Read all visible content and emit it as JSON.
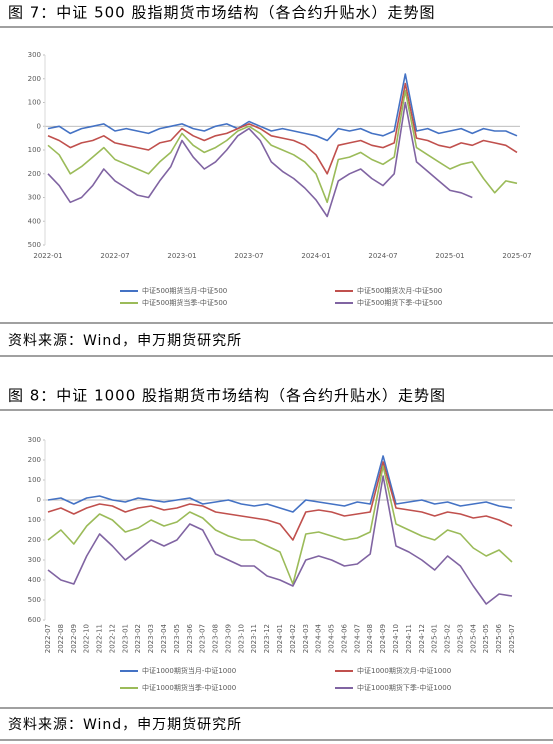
{
  "captions": [
    "图 7：中证 500 股指期货市场结构（各合约升贴水）走势图",
    "图 8：中证 1000 股指期货市场结构（各合约升贴水）走势图"
  ],
  "sources": [
    "资料来源：Wind，申万期货研究所",
    "资料来源：Wind，申万期货研究所"
  ],
  "chart_data": [
    {
      "type": "line",
      "x": [
        "2022-01",
        "2022-02",
        "2022-03",
        "2022-04",
        "2022-05",
        "2022-06",
        "2022-07",
        "2022-08",
        "2022-09",
        "2022-10",
        "2022-11",
        "2022-12",
        "2023-01",
        "2023-02",
        "2023-03",
        "2023-04",
        "2023-05",
        "2023-06",
        "2023-07",
        "2023-08",
        "2023-09",
        "2023-10",
        "2023-11",
        "2023-12",
        "2024-01",
        "2024-02",
        "2024-03",
        "2024-04",
        "2024-05",
        "2024-06",
        "2024-07",
        "2024-08",
        "2024-09",
        "2024-10",
        "2024-11",
        "2024-12",
        "2025-01",
        "2025-02",
        "2025-03",
        "2025-04",
        "2025-05",
        "2025-06",
        "2025-07"
      ],
      "xticks": [
        "2022-01",
        "2022-07",
        "2023-01",
        "2023-07",
        "2024-01",
        "2024-07",
        "2025-01",
        "2025-07"
      ],
      "ylim": [
        -500,
        300
      ],
      "yticks": [
        300,
        200,
        100,
        0,
        {
          "value": -100,
          "label": "100"
        },
        {
          "value": -200,
          "label": "200"
        },
        {
          "value": -300,
          "label": "300"
        },
        {
          "value": -400,
          "label": "400"
        },
        {
          "value": -500,
          "label": "500"
        }
      ],
      "series": [
        {
          "name": "中证500期货当月-中证500",
          "color": "#4472c4",
          "values": [
            -10,
            0,
            -30,
            -10,
            0,
            10,
            -20,
            -10,
            -20,
            -30,
            -10,
            0,
            10,
            -10,
            -20,
            0,
            10,
            -10,
            20,
            0,
            -20,
            -10,
            -20,
            -30,
            -40,
            -60,
            -10,
            -20,
            -10,
            -30,
            -40,
            -20,
            220,
            -20,
            -10,
            -30,
            -20,
            -10,
            -30,
            -10,
            -20,
            -20,
            -40
          ]
        },
        {
          "name": "中证500期货次月-中证500",
          "color": "#c0504d",
          "values": [
            -40,
            -60,
            -90,
            -70,
            -60,
            -40,
            -70,
            -80,
            -90,
            -100,
            -70,
            -60,
            -10,
            -40,
            -60,
            -40,
            -30,
            -10,
            10,
            -10,
            -40,
            -50,
            -60,
            -80,
            -120,
            -200,
            -80,
            -70,
            -60,
            -80,
            -90,
            -70,
            180,
            -50,
            -60,
            -80,
            -90,
            -70,
            -80,
            -60,
            -70,
            -80,
            -110
          ]
        },
        {
          "name": "中证500期货当季-中证500",
          "color": "#9bbb59",
          "values": [
            -80,
            -120,
            -200,
            -170,
            -130,
            -90,
            -140,
            -160,
            -180,
            -200,
            -150,
            -110,
            -30,
            -80,
            -110,
            -90,
            -60,
            -20,
            0,
            -30,
            -80,
            -100,
            -120,
            -150,
            -200,
            -320,
            -140,
            -130,
            -110,
            -140,
            -160,
            -130,
            150,
            -90,
            -120,
            -150,
            -180,
            -160,
            -150,
            -220,
            -280,
            -230,
            -240
          ]
        },
        {
          "name": "中证500期货下季-中证500",
          "color": "#8064a2",
          "values": [
            -200,
            -250,
            -320,
            -300,
            -250,
            -180,
            -230,
            -260,
            -290,
            -300,
            -230,
            -170,
            -60,
            -130,
            -180,
            -150,
            -100,
            -40,
            -10,
            -60,
            -150,
            -190,
            -220,
            -260,
            -310,
            -380,
            -230,
            -200,
            -180,
            -220,
            -250,
            -200,
            100,
            -150,
            -190,
            -230,
            -270,
            -280,
            -300,
            null,
            null,
            null,
            null
          ]
        }
      ]
    },
    {
      "type": "line",
      "x": [
        "2022-07",
        "2022-08",
        "2022-09",
        "2022-10",
        "2022-11",
        "2022-12",
        "2023-01",
        "2023-02",
        "2023-03",
        "2023-04",
        "2023-05",
        "2023-06",
        "2023-07",
        "2023-08",
        "2023-09",
        "2023-10",
        "2023-11",
        "2023-12",
        "2024-01",
        "2024-02",
        "2024-03",
        "2024-04",
        "2024-05",
        "2024-06",
        "2024-07",
        "2024-08",
        "2024-09",
        "2024-10",
        "2024-11",
        "2024-12",
        "2025-01",
        "2025-02",
        "2025-03",
        "2025-04",
        "2025-05",
        "2025-06",
        "2025-07"
      ],
      "ylim": [
        -600,
        300
      ],
      "yticks": [
        300,
        200,
        100,
        0,
        {
          "value": -100,
          "label": "100"
        },
        {
          "value": -200,
          "label": "200"
        },
        {
          "value": -300,
          "label": "300"
        },
        {
          "value": -400,
          "label": "400"
        },
        {
          "value": -500,
          "label": "500"
        },
        {
          "value": -600,
          "label": "600"
        }
      ],
      "series": [
        {
          "name": "中证1000期货当月-中证1000",
          "color": "#4472c4",
          "values": [
            0,
            10,
            -20,
            10,
            20,
            0,
            -10,
            10,
            0,
            -10,
            0,
            10,
            -20,
            -10,
            0,
            -20,
            -30,
            -20,
            -40,
            -60,
            0,
            -10,
            -20,
            -30,
            -10,
            -20,
            220,
            -20,
            -10,
            0,
            -20,
            -10,
            -30,
            -20,
            -10,
            -30,
            -40
          ]
        },
        {
          "name": "中证1000期货次月-中证1000",
          "color": "#c0504d",
          "values": [
            -60,
            -40,
            -70,
            -40,
            -20,
            -30,
            -60,
            -40,
            -30,
            -50,
            -40,
            -20,
            -30,
            -60,
            -70,
            -80,
            -90,
            -100,
            -120,
            -200,
            -60,
            -50,
            -60,
            -80,
            -70,
            -60,
            190,
            -40,
            -50,
            -60,
            -80,
            -60,
            -70,
            -90,
            -80,
            -100,
            -130
          ]
        },
        {
          "name": "中证1000期货当季-中证1000",
          "color": "#9bbb59",
          "values": [
            -200,
            -150,
            -220,
            -130,
            -70,
            -100,
            -160,
            -140,
            -100,
            -130,
            -110,
            -60,
            -90,
            -150,
            -180,
            -200,
            -200,
            -230,
            -260,
            -420,
            -170,
            -160,
            -180,
            -200,
            -190,
            -160,
            170,
            -120,
            -150,
            -180,
            -200,
            -150,
            -170,
            -240,
            -280,
            -250,
            -310
          ]
        },
        {
          "name": "中证1000期货下季-中证1000",
          "color": "#8064a2",
          "values": [
            -350,
            -400,
            -420,
            -280,
            -170,
            -230,
            -300,
            -250,
            -200,
            -230,
            -200,
            -120,
            -150,
            -270,
            -300,
            -330,
            -330,
            -380,
            -400,
            -430,
            -300,
            -280,
            -300,
            -330,
            -320,
            -270,
            120,
            -230,
            -260,
            -300,
            -350,
            -280,
            -330,
            -430,
            -520,
            -470,
            -480
          ]
        }
      ]
    }
  ]
}
